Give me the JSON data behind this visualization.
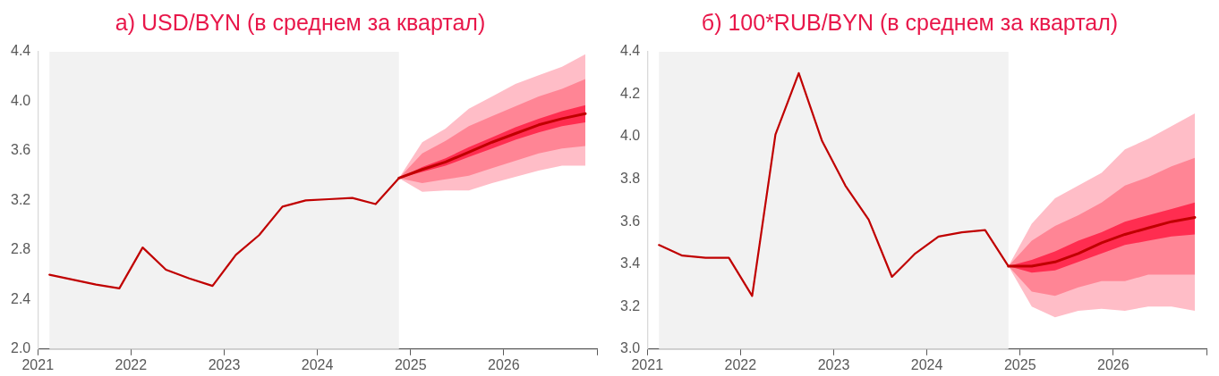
{
  "chart_data": [
    {
      "type": "line",
      "title": "а) USD/BYN (в среднем за квартал)",
      "xlim": [
        2021,
        2027
      ],
      "xticks": [
        2021,
        2022,
        2023,
        2024,
        2025,
        2026,
        {
          "value": 2027,
          "label": null
        }
      ],
      "ylim": [
        2.0,
        4.4
      ],
      "yticks": [
        {
          "value": 2.0,
          "label": "2.0"
        },
        2.4,
        2.8,
        3.2,
        3.6,
        {
          "value": 4.0,
          "label": "4.0"
        },
        4.4
      ],
      "bands": [
        {
          "axis": "x",
          "from": 2021.125,
          "to": 2024.875,
          "color": "#f2f2f2"
        }
      ],
      "series": [
        {
          "type": "line",
          "color": "#c00000",
          "x": [
            2021.125,
            2021.375,
            2021.625,
            2021.875,
            2022.125,
            2022.375,
            2022.625,
            2022.875,
            2023.125,
            2023.375,
            2023.625,
            2023.875,
            2024.125,
            2024.375,
            2024.625,
            2024.875
          ],
          "values": [
            2.6,
            2.56,
            2.52,
            2.49,
            2.82,
            2.64,
            2.57,
            2.51,
            2.76,
            2.92,
            3.15,
            3.2,
            3.21,
            3.22,
            3.17,
            3.38
          ]
        },
        {
          "type": "line",
          "color": "#ffbdc7",
          "x": [
            2024.875,
            2025.125,
            2025.375,
            2025.625,
            2025.875,
            2026.125,
            2026.375,
            2026.625,
            2026.875
          ],
          "values": [
            null,
            null,
            null,
            null,
            null,
            null,
            null,
            null,
            null
          ],
          "lower": [
            3.38,
            3.27,
            3.28,
            3.28,
            3.34,
            3.39,
            3.44,
            3.48,
            3.48
          ],
          "upper": [
            3.38,
            3.67,
            3.78,
            3.94,
            4.04,
            4.14,
            4.21,
            4.28,
            4.38
          ]
        },
        {
          "type": "line",
          "color": "#ff8595",
          "x": [
            2024.875,
            2025.125,
            2025.375,
            2025.625,
            2025.875,
            2026.125,
            2026.375,
            2026.625,
            2026.875
          ],
          "values": [
            null,
            null,
            null,
            null,
            null,
            null,
            null,
            null,
            null
          ],
          "lower": [
            3.38,
            3.34,
            3.37,
            3.4,
            3.46,
            3.52,
            3.58,
            3.62,
            3.64
          ],
          "upper": [
            3.38,
            3.58,
            3.68,
            3.8,
            3.88,
            3.96,
            4.04,
            4.1,
            4.18
          ]
        },
        {
          "type": "line",
          "color": "#ff2d50",
          "x": [
            2024.875,
            2025.125,
            2025.375,
            2025.625,
            2025.875,
            2026.125,
            2026.375,
            2026.625,
            2026.875
          ],
          "values": [
            null,
            null,
            null,
            null,
            null,
            null,
            null,
            null,
            null
          ],
          "lower": [
            3.38,
            3.43,
            3.48,
            3.55,
            3.62,
            3.69,
            3.75,
            3.8,
            3.83
          ],
          "upper": [
            3.38,
            3.47,
            3.54,
            3.63,
            3.71,
            3.79,
            3.86,
            3.92,
            3.97
          ]
        },
        {
          "type": "line",
          "color": "#c00000",
          "x": [
            2024.875,
            2025.125,
            2025.375,
            2025.625,
            2025.875,
            2026.125,
            2026.375,
            2026.625,
            2026.875
          ],
          "values": [
            3.38,
            3.45,
            3.51,
            3.59,
            3.67,
            3.74,
            3.81,
            3.86,
            3.9
          ]
        }
      ]
    },
    {
      "type": "line",
      "title": "б) 100*RUB/BYN (в среднем за квартал)",
      "xlim": [
        2021,
        2027
      ],
      "xticks": [
        2021,
        2022,
        2023,
        2024,
        2025,
        2026,
        {
          "value": 2027,
          "label": null
        }
      ],
      "ylim": [
        3.0,
        4.4
      ],
      "yticks": [
        {
          "value": 3.0,
          "label": "3.0"
        },
        3.2,
        3.4,
        3.6,
        3.8,
        {
          "value": 4.0,
          "label": "4.0"
        },
        4.2,
        4.4
      ],
      "bands": [
        {
          "axis": "x",
          "from": 2021.125,
          "to": 2024.875,
          "color": "#f2f2f2"
        }
      ],
      "series": [
        {
          "type": "line",
          "color": "#c00000",
          "x": [
            2021.125,
            2021.375,
            2021.625,
            2021.875,
            2022.125,
            2022.375,
            2022.625,
            2022.875,
            2023.125,
            2023.375,
            2023.625,
            2023.875,
            2024.125,
            2024.375,
            2024.625,
            2024.875
          ],
          "values": [
            3.49,
            3.44,
            3.43,
            3.43,
            3.25,
            4.01,
            4.3,
            3.98,
            3.77,
            3.61,
            3.34,
            3.45,
            3.53,
            3.55,
            3.56,
            3.39
          ]
        },
        {
          "type": "line",
          "color": "#ffbdc7",
          "x": [
            2024.875,
            2025.125,
            2025.375,
            2025.625,
            2025.875,
            2026.125,
            2026.375,
            2026.625,
            2026.875
          ],
          "values": [
            null,
            null,
            null,
            null,
            null,
            null,
            null,
            null,
            null
          ],
          "lower": [
            3.39,
            3.2,
            3.15,
            3.18,
            3.19,
            3.18,
            3.2,
            3.2,
            3.18
          ],
          "upper": [
            3.39,
            3.59,
            3.71,
            3.77,
            3.83,
            3.94,
            3.99,
            4.05,
            4.11
          ]
        },
        {
          "type": "line",
          "color": "#ff8595",
          "x": [
            2024.875,
            2025.125,
            2025.375,
            2025.625,
            2025.875,
            2026.125,
            2026.375,
            2026.625,
            2026.875
          ],
          "values": [
            null,
            null,
            null,
            null,
            null,
            null,
            null,
            null,
            null
          ],
          "lower": [
            3.39,
            3.27,
            3.25,
            3.29,
            3.32,
            3.32,
            3.35,
            3.35,
            3.35
          ],
          "upper": [
            3.39,
            3.51,
            3.58,
            3.63,
            3.69,
            3.77,
            3.81,
            3.86,
            3.9
          ]
        },
        {
          "type": "line",
          "color": "#ff2d50",
          "x": [
            2024.875,
            2025.125,
            2025.375,
            2025.625,
            2025.875,
            2026.125,
            2026.375,
            2026.625,
            2026.875
          ],
          "values": [
            null,
            null,
            null,
            null,
            null,
            null,
            null,
            null,
            null
          ],
          "lower": [
            3.39,
            3.36,
            3.37,
            3.41,
            3.45,
            3.49,
            3.51,
            3.53,
            3.54
          ],
          "upper": [
            3.39,
            3.42,
            3.46,
            3.51,
            3.55,
            3.6,
            3.63,
            3.66,
            3.69
          ]
        },
        {
          "type": "line",
          "color": "#c00000",
          "x": [
            2024.875,
            2025.125,
            2025.375,
            2025.625,
            2025.875,
            2026.125,
            2026.375,
            2026.625,
            2026.875
          ],
          "values": [
            3.39,
            3.39,
            3.41,
            3.45,
            3.5,
            3.54,
            3.57,
            3.6,
            3.62
          ]
        }
      ]
    }
  ]
}
